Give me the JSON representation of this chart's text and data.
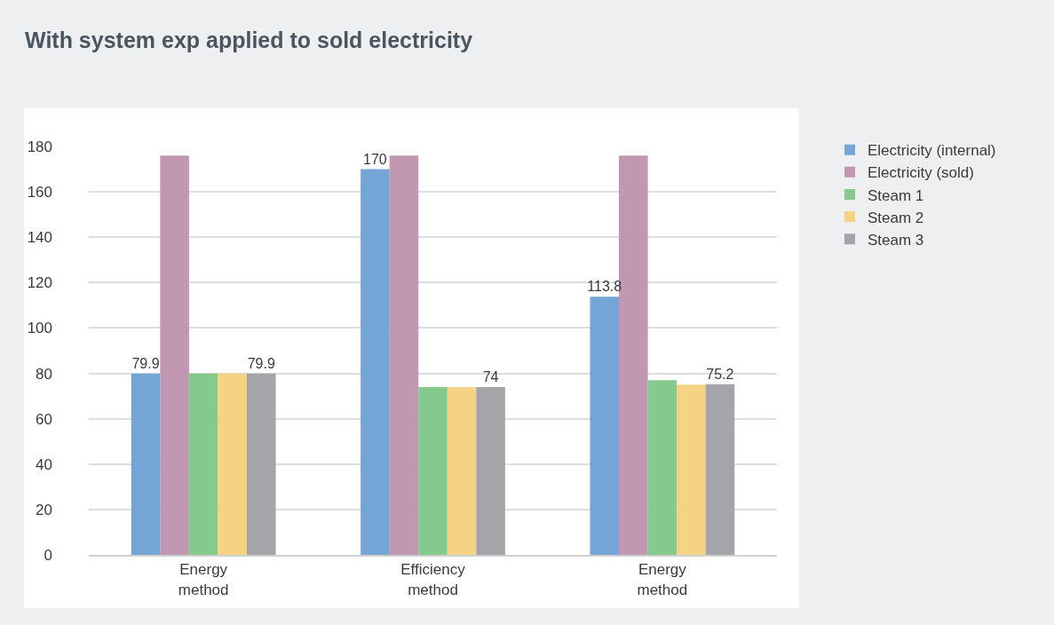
{
  "chart_data": {
    "type": "bar",
    "title": "With system exp applied to sold electricity",
    "categories": [
      "Energy method",
      "Efficiency method",
      "Energy method"
    ],
    "series": [
      {
        "name": "Electricity (internal)",
        "color": "#74a5d6",
        "values": [
          79.9,
          170,
          113.8
        ],
        "value_labels": [
          "79.9",
          "170",
          "113.8"
        ]
      },
      {
        "name": "Electricity (sold)",
        "color": "#c297b1",
        "values": [
          176,
          176,
          176
        ]
      },
      {
        "name": "Steam 1",
        "color": "#86c98c",
        "values": [
          79.9,
          74,
          77
        ]
      },
      {
        "name": "Steam 2",
        "color": "#f4d384",
        "values": [
          79.9,
          74,
          75
        ]
      },
      {
        "name": "Steam 3",
        "color": "#a4a5a9",
        "values": [
          79.9,
          74,
          75.2
        ],
        "value_labels": [
          "79.9",
          "74",
          "75.2"
        ]
      }
    ],
    "ylim": [
      0,
      180
    ],
    "yticks": [
      0,
      20,
      40,
      60,
      80,
      100,
      120,
      140,
      160,
      180
    ],
    "grid": "y",
    "legend": "right"
  }
}
